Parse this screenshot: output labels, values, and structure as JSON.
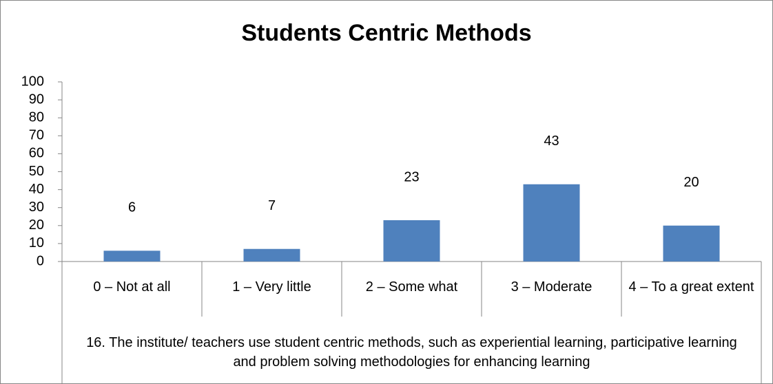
{
  "chart_data": {
    "type": "bar",
    "title": "Students Centric Methods",
    "x_label": "16. The institute/ teachers use student centric methods, such as experiential learning, participative learning and problem solving methodologies for enhancing learning",
    "categories": [
      "0 – Not at all",
      "1 – Very little",
      "2 – Some what",
      "3 – Moderate",
      "4 – To a great extent"
    ],
    "values": [
      6,
      7,
      23,
      43,
      20
    ],
    "color": "#4f81bd",
    "ylim": [
      0,
      100
    ],
    "yticks": [
      0,
      10,
      20,
      30,
      40,
      50,
      60,
      70,
      80,
      90,
      100
    ],
    "grid": false
  }
}
